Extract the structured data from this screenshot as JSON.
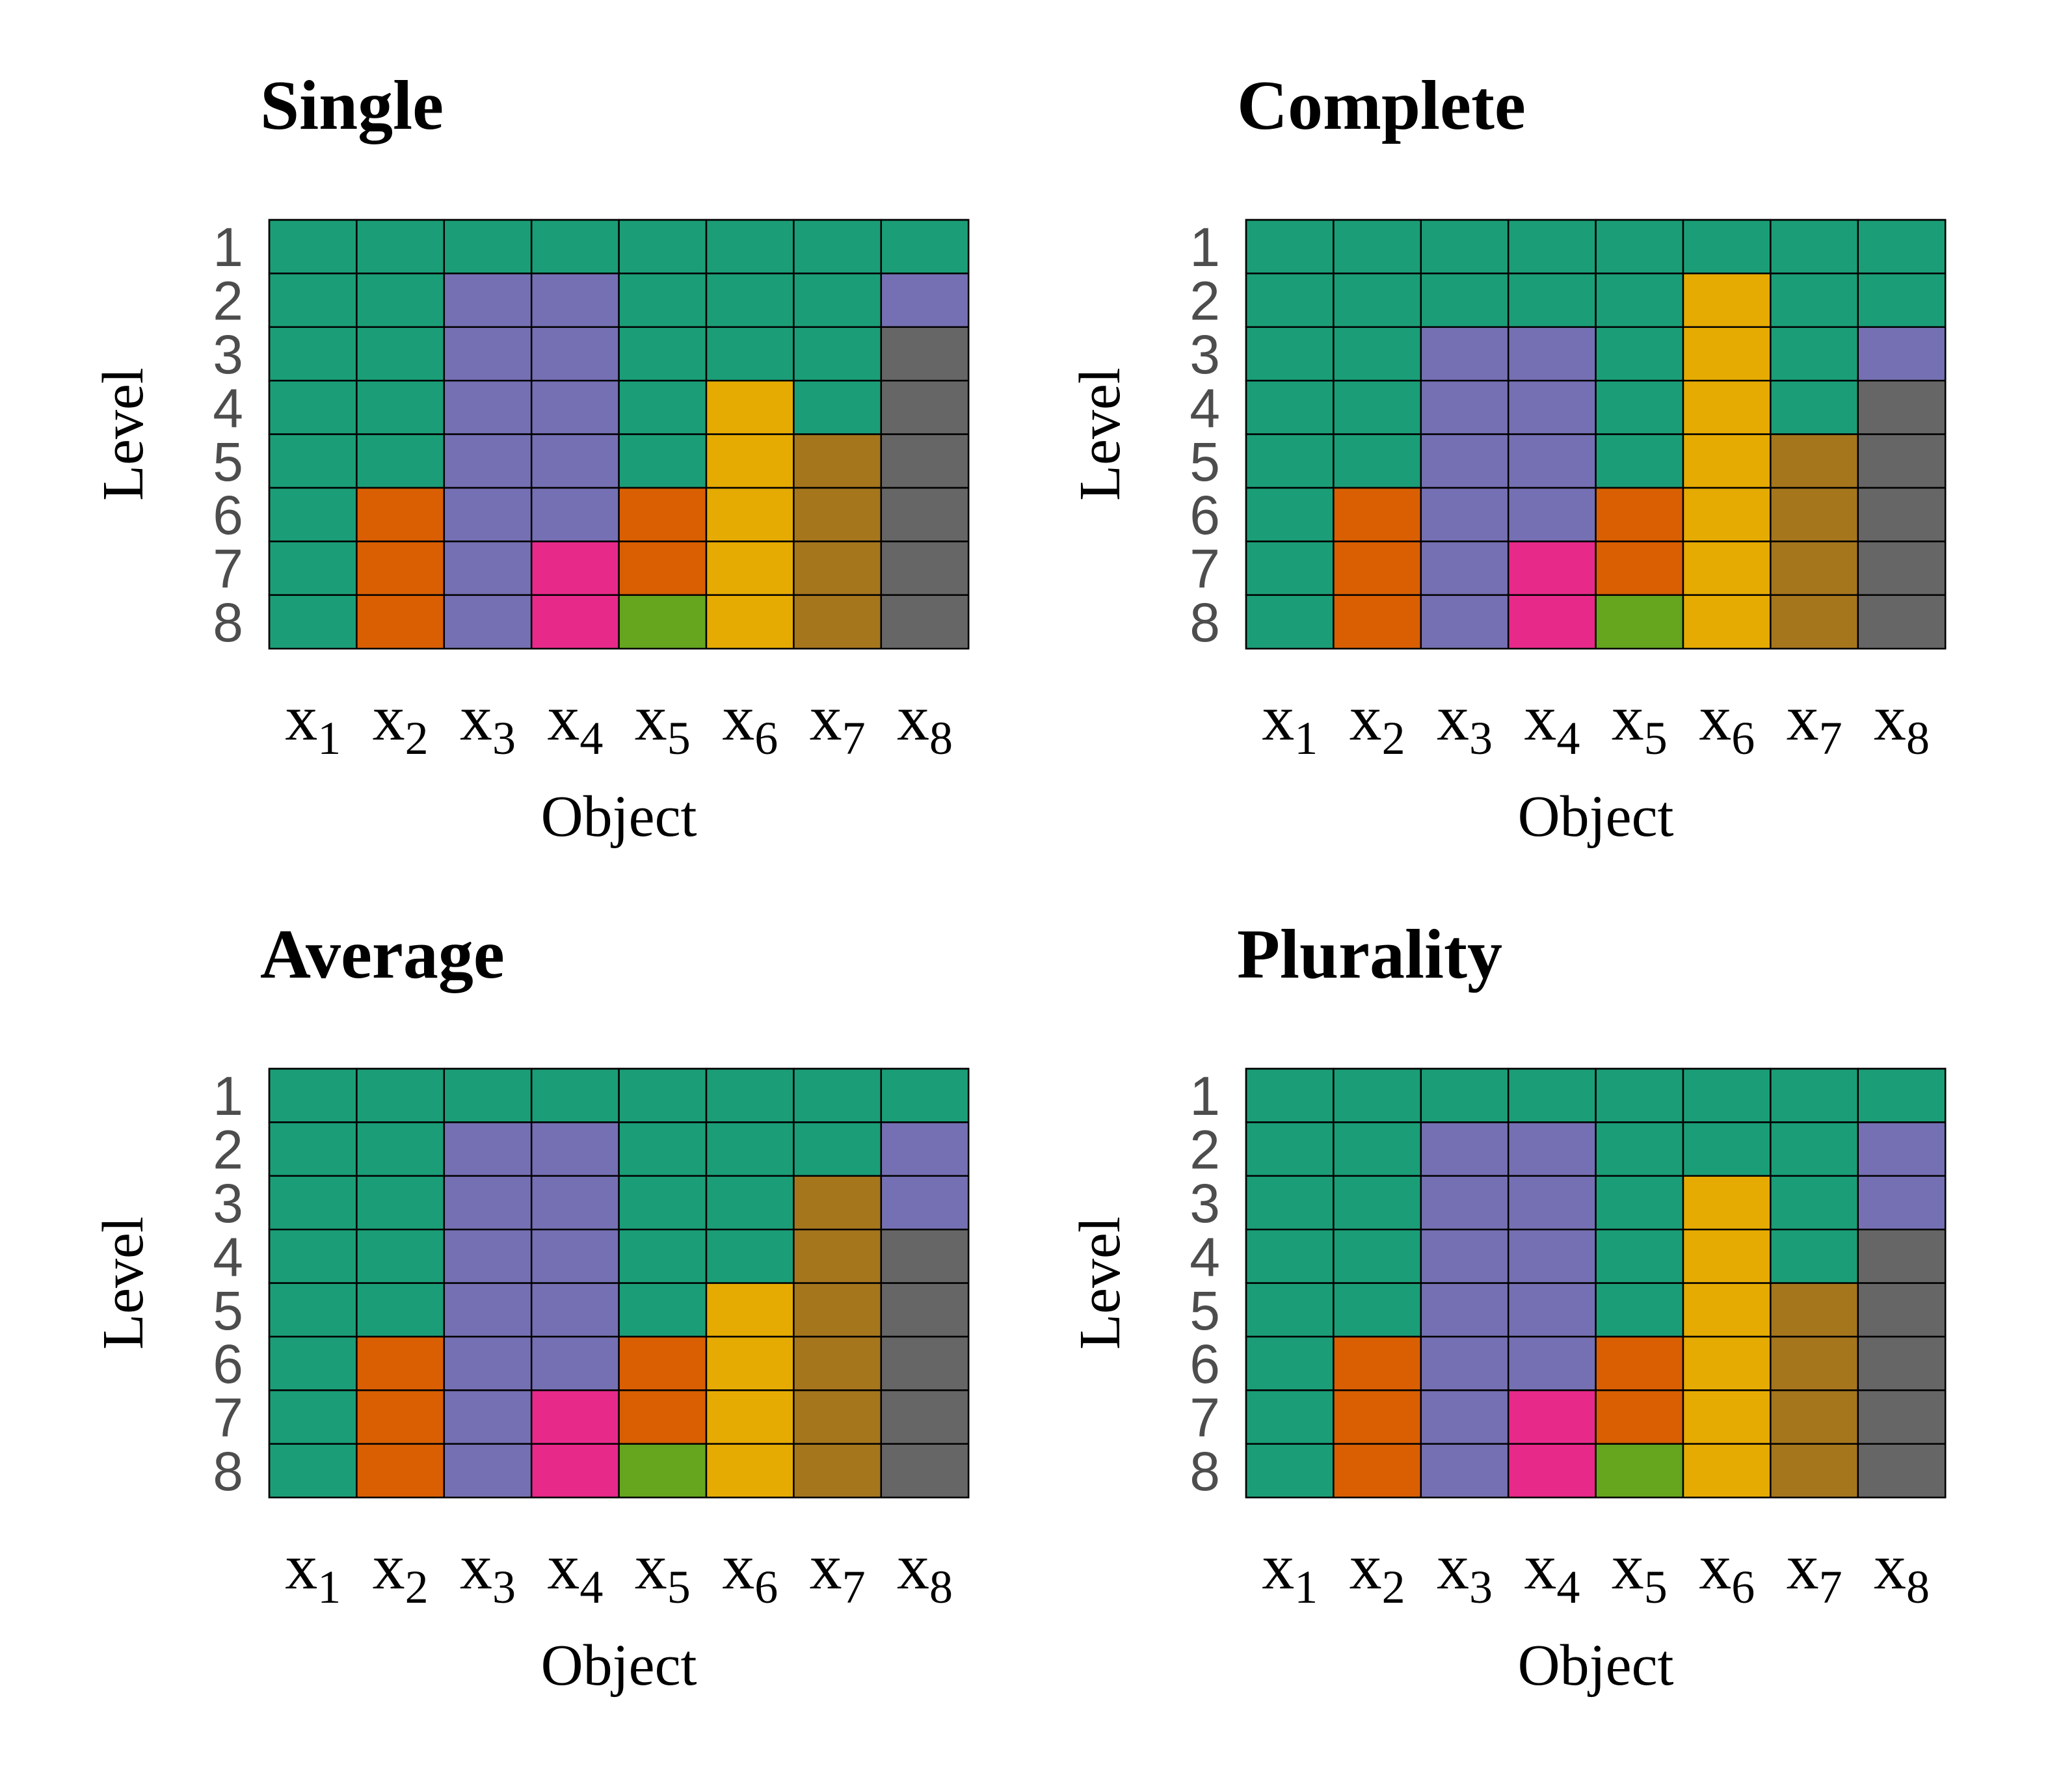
{
  "palette": {
    "1": "#1B9E77",
    "2": "#D95F02",
    "3": "#7570B3",
    "4": "#E7298A",
    "5": "#66A61E",
    "6": "#E6AB02",
    "7": "#A6761D",
    "8": "#666666"
  },
  "chart_data": [
    {
      "type": "heatmap",
      "title": "Single",
      "xlabel": "Object",
      "ylabel": "Level",
      "x_categories": [
        {
          "base": "x",
          "sub": "1"
        },
        {
          "base": "x",
          "sub": "2"
        },
        {
          "base": "x",
          "sub": "3"
        },
        {
          "base": "x",
          "sub": "4"
        },
        {
          "base": "x",
          "sub": "5"
        },
        {
          "base": "x",
          "sub": "6"
        },
        {
          "base": "x",
          "sub": "7"
        },
        {
          "base": "x",
          "sub": "8"
        }
      ],
      "y_categories": [
        "1",
        "2",
        "3",
        "4",
        "5",
        "6",
        "7",
        "8"
      ],
      "values": [
        [
          1,
          1,
          1,
          1,
          1,
          1,
          1,
          1
        ],
        [
          1,
          1,
          3,
          3,
          1,
          1,
          1,
          3
        ],
        [
          1,
          1,
          3,
          3,
          1,
          1,
          1,
          8
        ],
        [
          1,
          1,
          3,
          3,
          1,
          6,
          1,
          8
        ],
        [
          1,
          1,
          3,
          3,
          1,
          6,
          7,
          8
        ],
        [
          1,
          2,
          3,
          3,
          2,
          6,
          7,
          8
        ],
        [
          1,
          2,
          3,
          4,
          2,
          6,
          7,
          8
        ],
        [
          1,
          2,
          3,
          4,
          5,
          6,
          7,
          8
        ]
      ]
    },
    {
      "type": "heatmap",
      "title": "Complete",
      "xlabel": "Object",
      "ylabel": "Level",
      "x_categories": [
        {
          "base": "x",
          "sub": "1"
        },
        {
          "base": "x",
          "sub": "2"
        },
        {
          "base": "x",
          "sub": "3"
        },
        {
          "base": "x",
          "sub": "4"
        },
        {
          "base": "x",
          "sub": "5"
        },
        {
          "base": "x",
          "sub": "6"
        },
        {
          "base": "x",
          "sub": "7"
        },
        {
          "base": "x",
          "sub": "8"
        }
      ],
      "y_categories": [
        "1",
        "2",
        "3",
        "4",
        "5",
        "6",
        "7",
        "8"
      ],
      "values": [
        [
          1,
          1,
          1,
          1,
          1,
          1,
          1,
          1
        ],
        [
          1,
          1,
          1,
          1,
          1,
          6,
          1,
          1
        ],
        [
          1,
          1,
          3,
          3,
          1,
          6,
          1,
          3
        ],
        [
          1,
          1,
          3,
          3,
          1,
          6,
          1,
          8
        ],
        [
          1,
          1,
          3,
          3,
          1,
          6,
          7,
          8
        ],
        [
          1,
          2,
          3,
          3,
          2,
          6,
          7,
          8
        ],
        [
          1,
          2,
          3,
          4,
          2,
          6,
          7,
          8
        ],
        [
          1,
          2,
          3,
          4,
          5,
          6,
          7,
          8
        ]
      ]
    },
    {
      "type": "heatmap",
      "title": "Average",
      "xlabel": "Object",
      "ylabel": "Level",
      "x_categories": [
        {
          "base": "x",
          "sub": "1"
        },
        {
          "base": "x",
          "sub": "2"
        },
        {
          "base": "x",
          "sub": "3"
        },
        {
          "base": "x",
          "sub": "4"
        },
        {
          "base": "x",
          "sub": "5"
        },
        {
          "base": "x",
          "sub": "6"
        },
        {
          "base": "x",
          "sub": "7"
        },
        {
          "base": "x",
          "sub": "8"
        }
      ],
      "y_categories": [
        "1",
        "2",
        "3",
        "4",
        "5",
        "6",
        "7",
        "8"
      ],
      "values": [
        [
          1,
          1,
          1,
          1,
          1,
          1,
          1,
          1
        ],
        [
          1,
          1,
          3,
          3,
          1,
          1,
          1,
          3
        ],
        [
          1,
          1,
          3,
          3,
          1,
          1,
          7,
          3
        ],
        [
          1,
          1,
          3,
          3,
          1,
          1,
          7,
          8
        ],
        [
          1,
          1,
          3,
          3,
          1,
          6,
          7,
          8
        ],
        [
          1,
          2,
          3,
          3,
          2,
          6,
          7,
          8
        ],
        [
          1,
          2,
          3,
          4,
          2,
          6,
          7,
          8
        ],
        [
          1,
          2,
          3,
          4,
          5,
          6,
          7,
          8
        ]
      ]
    },
    {
      "type": "heatmap",
      "title": "Plurality",
      "xlabel": "Object",
      "ylabel": "Level",
      "x_categories": [
        {
          "base": "x",
          "sub": "1"
        },
        {
          "base": "x",
          "sub": "2"
        },
        {
          "base": "x",
          "sub": "3"
        },
        {
          "base": "x",
          "sub": "4"
        },
        {
          "base": "x",
          "sub": "5"
        },
        {
          "base": "x",
          "sub": "6"
        },
        {
          "base": "x",
          "sub": "7"
        },
        {
          "base": "x",
          "sub": "8"
        }
      ],
      "y_categories": [
        "1",
        "2",
        "3",
        "4",
        "5",
        "6",
        "7",
        "8"
      ],
      "values": [
        [
          1,
          1,
          1,
          1,
          1,
          1,
          1,
          1
        ],
        [
          1,
          1,
          3,
          3,
          1,
          1,
          1,
          3
        ],
        [
          1,
          1,
          3,
          3,
          1,
          6,
          1,
          3
        ],
        [
          1,
          1,
          3,
          3,
          1,
          6,
          1,
          8
        ],
        [
          1,
          1,
          3,
          3,
          1,
          6,
          7,
          8
        ],
        [
          1,
          2,
          3,
          3,
          2,
          6,
          7,
          8
        ],
        [
          1,
          2,
          3,
          4,
          2,
          6,
          7,
          8
        ],
        [
          1,
          2,
          3,
          4,
          5,
          6,
          7,
          8
        ]
      ]
    }
  ]
}
